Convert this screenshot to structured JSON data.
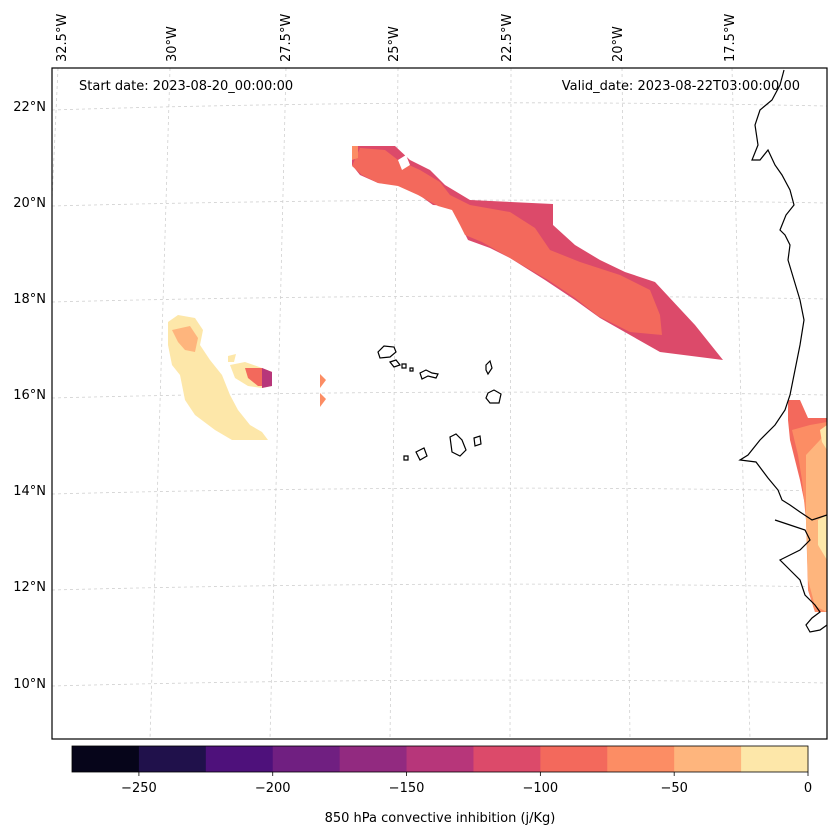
{
  "header": {
    "start_date": "Start date: 2023-08-20_00:00:00",
    "valid_date": "Valid_date: 2023-08-22T03:00:00.00"
  },
  "map": {
    "lon_labels": [
      "32.5°W",
      "30°W",
      "27.5°W",
      "25°W",
      "22.5°W",
      "20°W",
      "17.5°W"
    ],
    "lat_labels": [
      "22°N",
      "20°N",
      "18°N",
      "16°N",
      "14°N",
      "12°N",
      "10°N"
    ],
    "gridlines": "dashed"
  },
  "colorbar": {
    "label": "850 hPa convective inhibition (j/Kg)",
    "ticks": [
      "−250",
      "−200",
      "−150",
      "−100",
      "−50",
      "0"
    ],
    "tick_values": [
      -250,
      -200,
      -150,
      -100,
      -50,
      0
    ],
    "min": -275,
    "max": 0,
    "colors": [
      "#06051a",
      "#20114b",
      "#4e117b",
      "#701f81",
      "#922a80",
      "#b7367a",
      "#dc4a6a",
      "#f3695c",
      "#fc8d64",
      "#feb57d",
      "#fde7a9"
    ]
  }
}
